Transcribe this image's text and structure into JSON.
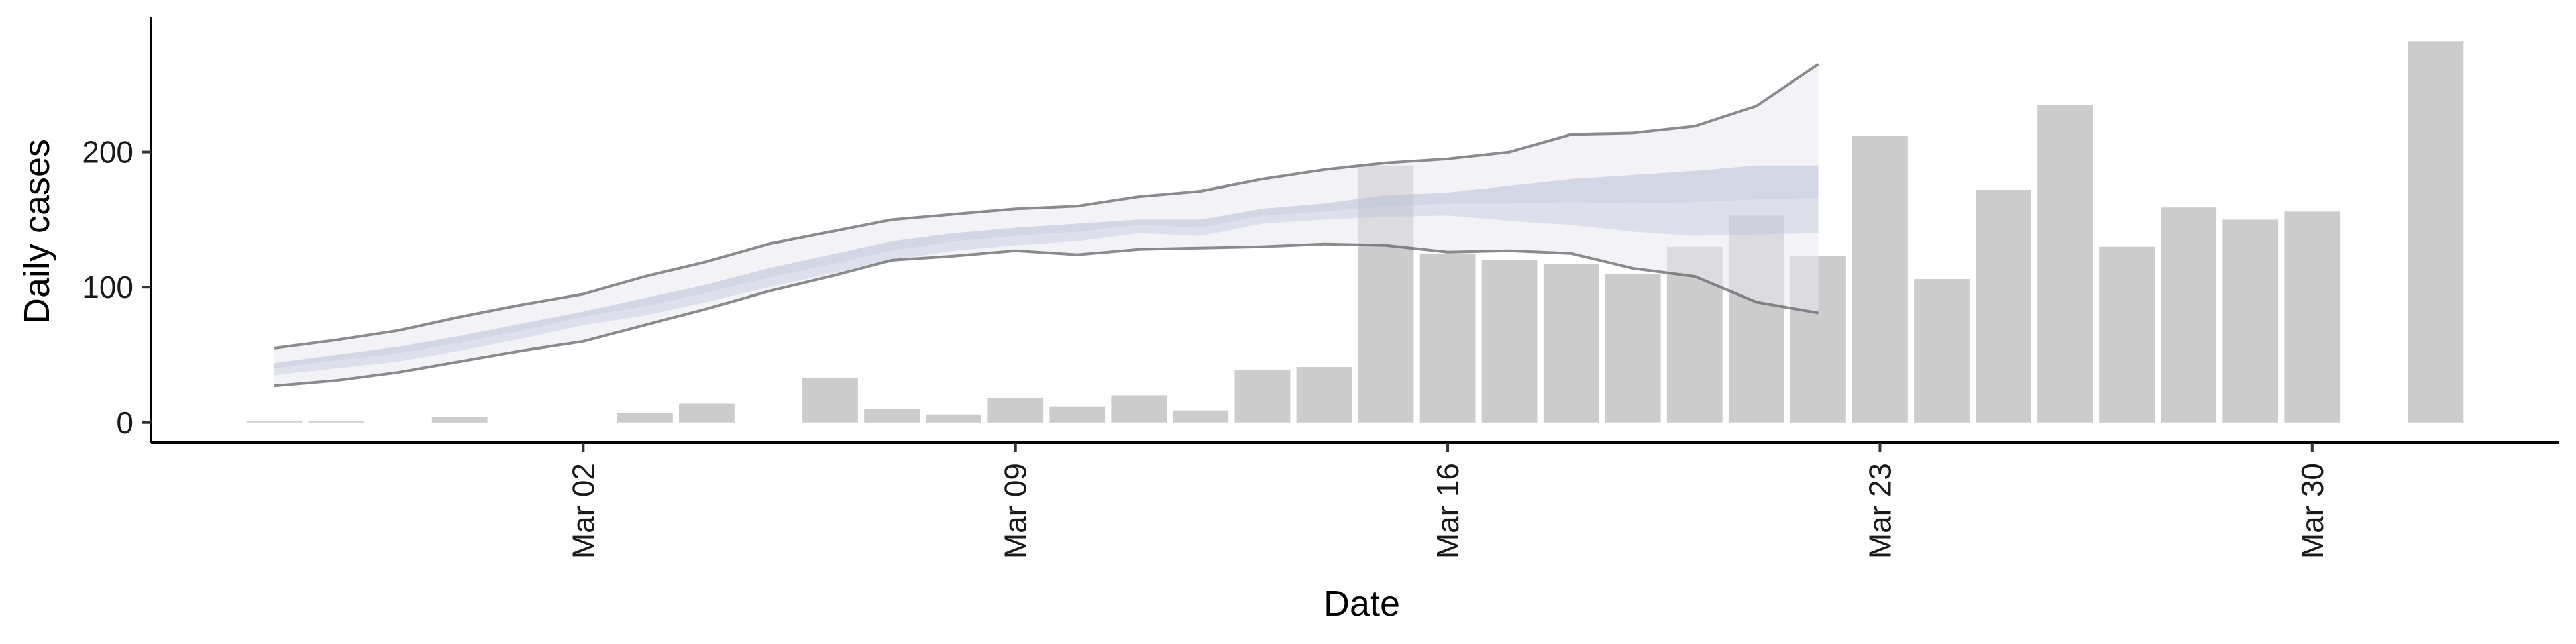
{
  "chart_data": {
    "type": "bar",
    "xlabel": "Date",
    "ylabel": "Daily cases",
    "ylim": [
      -15,
      300
    ],
    "xlim": [
      "2020-02-24",
      "2020-04-03"
    ],
    "yticks": [
      0,
      100,
      200
    ],
    "grid": false,
    "x_ticks": [
      {
        "date": "2020-03-02",
        "label": "Mar 02"
      },
      {
        "date": "2020-03-09",
        "label": "Mar 09"
      },
      {
        "date": "2020-03-16",
        "label": "Mar 16"
      },
      {
        "date": "2020-03-23",
        "label": "Mar 23"
      },
      {
        "date": "2020-03-30",
        "label": "Mar 30"
      }
    ],
    "bars": {
      "color": "#cccccc",
      "points": [
        {
          "date": "2020-02-26",
          "value": 1
        },
        {
          "date": "2020-02-27",
          "value": 1
        },
        {
          "date": "2020-02-29",
          "value": 4
        },
        {
          "date": "2020-03-03",
          "value": 7
        },
        {
          "date": "2020-03-04",
          "value": 14
        },
        {
          "date": "2020-03-06",
          "value": 33
        },
        {
          "date": "2020-03-07",
          "value": 10
        },
        {
          "date": "2020-03-08",
          "value": 6
        },
        {
          "date": "2020-03-09",
          "value": 18
        },
        {
          "date": "2020-03-10",
          "value": 12
        },
        {
          "date": "2020-03-11",
          "value": 20
        },
        {
          "date": "2020-03-12",
          "value": 9
        },
        {
          "date": "2020-03-13",
          "value": 39
        },
        {
          "date": "2020-03-14",
          "value": 41
        },
        {
          "date": "2020-03-15",
          "value": 190
        },
        {
          "date": "2020-03-16",
          "value": 125
        },
        {
          "date": "2020-03-17",
          "value": 120
        },
        {
          "date": "2020-03-18",
          "value": 117
        },
        {
          "date": "2020-03-19",
          "value": 110
        },
        {
          "date": "2020-03-20",
          "value": 130
        },
        {
          "date": "2020-03-21",
          "value": 153
        },
        {
          "date": "2020-03-22",
          "value": 123
        },
        {
          "date": "2020-03-23",
          "value": 212
        },
        {
          "date": "2020-03-24",
          "value": 106
        },
        {
          "date": "2020-03-25",
          "value": 172
        },
        {
          "date": "2020-03-26",
          "value": 235
        },
        {
          "date": "2020-03-27",
          "value": 130
        },
        {
          "date": "2020-03-28",
          "value": 159
        },
        {
          "date": "2020-03-29",
          "value": 150
        },
        {
          "date": "2020-03-30",
          "value": 156
        },
        {
          "date": "2020-04-01",
          "value": 282
        }
      ]
    },
    "estimate": {
      "dates": [
        "2020-02-26",
        "2020-02-27",
        "2020-02-28",
        "2020-02-29",
        "2020-03-01",
        "2020-03-02",
        "2020-03-03",
        "2020-03-04",
        "2020-03-05",
        "2020-03-06",
        "2020-03-07",
        "2020-03-08",
        "2020-03-09",
        "2020-03-10",
        "2020-03-11",
        "2020-03-12",
        "2020-03-13",
        "2020-03-14",
        "2020-03-15",
        "2020-03-16",
        "2020-03-17",
        "2020-03-18",
        "2020-03-19",
        "2020-03-20",
        "2020-03-21",
        "2020-03-22",
        "2020-03-23"
      ],
      "upper": [
        55,
        61,
        68,
        78,
        87,
        95,
        108,
        119,
        132,
        141,
        150,
        154,
        158,
        160,
        167,
        171,
        180,
        187,
        192,
        195,
        200,
        213,
        214,
        219,
        234,
        265,
        null
      ],
      "upper_mid": [
        44,
        50,
        56,
        64,
        73,
        82,
        92,
        102,
        114,
        124,
        134,
        140,
        144,
        147,
        150,
        150,
        158,
        162,
        168,
        170,
        175,
        180,
        183,
        186,
        190,
        190,
        null
      ],
      "median": [
        40,
        46,
        51,
        59,
        68,
        78,
        86,
        96,
        107,
        117,
        127,
        134,
        138,
        141,
        146,
        144,
        153,
        156,
        160,
        162,
        162,
        163,
        162,
        163,
        165,
        166,
        null
      ],
      "lower_mid": [
        35,
        40,
        45,
        53,
        62,
        72,
        79,
        89,
        100,
        110,
        120,
        127,
        131,
        134,
        140,
        138,
        147,
        150,
        152,
        153,
        149,
        146,
        141,
        138,
        139,
        140,
        null
      ],
      "lower": [
        27,
        31,
        37,
        45,
        53,
        60,
        72,
        84,
        97,
        108,
        120,
        123,
        127,
        124,
        128,
        129,
        130,
        132,
        131,
        126,
        127,
        125,
        114,
        108,
        89,
        81,
        null
      ],
      "outer_band_color": "#e8e8f0",
      "inner_band_color": "#b6bdd4",
      "line_color": "#666666"
    }
  }
}
